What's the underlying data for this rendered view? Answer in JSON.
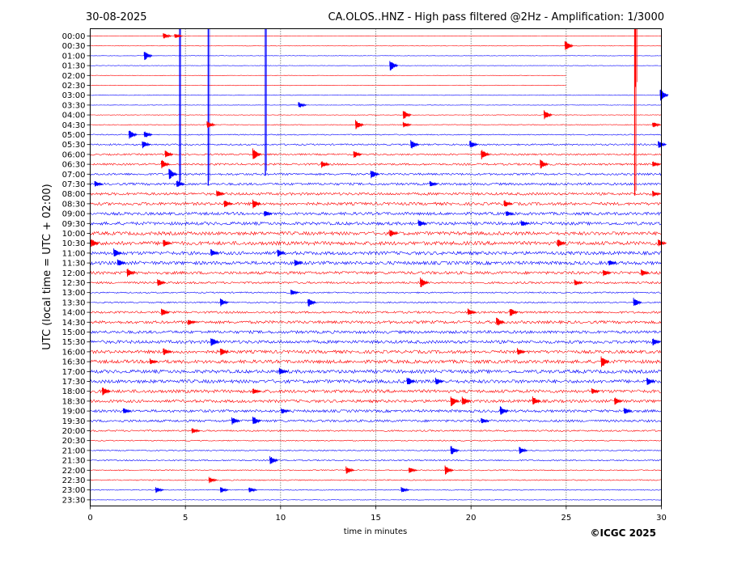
{
  "header": {
    "date": "30-08-2025",
    "title": "CA.OLOS..HNZ - High pass filtered @2Hz - Amplification: 1/3000"
  },
  "footer": {
    "copyright": "©ICGC 2025"
  },
  "colors": {
    "red_trace": "#ff0000",
    "blue_trace": "#0000ff",
    "axis": "#000000"
  },
  "chart_data": {
    "type": "line",
    "subtype": "helicorder (seismogram drum)",
    "xlabel": "time in minutes",
    "ylabel": "UTC (local time = UTC + 02:00)",
    "xlim": [
      0,
      30
    ],
    "xticks": [
      "0",
      "5",
      "10",
      "15",
      "20",
      "25",
      "30"
    ],
    "grid": "vertical dotted lines at 5, 10, 15, 20, 25 minutes",
    "row_color_cycle": [
      "red",
      "red",
      "blue",
      "blue"
    ],
    "rows": [
      "00:00",
      "00:30",
      "01:00",
      "01:30",
      "02:00",
      "02:30",
      "03:00",
      "03:30",
      "04:00",
      "04:30",
      "05:00",
      "05:30",
      "06:00",
      "06:30",
      "07:00",
      "07:30",
      "08:00",
      "08:30",
      "09:00",
      "09:30",
      "10:00",
      "10:30",
      "11:00",
      "11:30",
      "12:00",
      "12:30",
      "13:00",
      "13:30",
      "14:00",
      "14:30",
      "15:00",
      "15:30",
      "16:00",
      "16:30",
      "17:00",
      "17:30",
      "18:00",
      "18:30",
      "19:00",
      "19:30",
      "20:00",
      "20:30",
      "21:00",
      "21:30",
      "22:00",
      "22:30",
      "23:00",
      "23:30"
    ],
    "noise_level_by_row": [
      0.3,
      0.3,
      0.3,
      0.3,
      0.3,
      0.4,
      0.3,
      0.3,
      0.4,
      0.6,
      0.8,
      1.2,
      1.3,
      1.5,
      1.6,
      1.8,
      2.0,
      2.2,
      2.2,
      2.4,
      2.6,
      2.8,
      2.6,
      2.6,
      2.2,
      1.6,
      1.0,
      1.0,
      1.6,
      2.2,
      2.2,
      2.4,
      2.4,
      2.6,
      2.6,
      2.6,
      2.4,
      2.2,
      2.0,
      1.8,
      1.2,
      0.8,
      0.8,
      1.0,
      0.8,
      0.8,
      0.6,
      0.4
    ],
    "row_ends_at_minute": {
      "02:00": 25.0,
      "02:30": 25.0
    },
    "spikes": [
      {
        "row": "00:00",
        "x": 4.7,
        "to_row": "07:30",
        "color": "blue"
      },
      {
        "row": "00:00",
        "x": 6.2,
        "to_row": "07:30",
        "color": "blue"
      },
      {
        "row": "00:00",
        "x": 9.2,
        "to_row": "07:00",
        "color": "blue"
      },
      {
        "row": "00:00",
        "x": 28.6,
        "to_row": "08:00",
        "color": "red"
      },
      {
        "row": "00:00",
        "x": 28.65,
        "to_row": "02:30",
        "color": "red"
      }
    ],
    "events": [
      {
        "row": "00:00",
        "x": 3.9,
        "amp": 4
      },
      {
        "row": "00:00",
        "x": 4.5,
        "amp": 3
      },
      {
        "row": "00:30",
        "x": 25.0,
        "amp": 7
      },
      {
        "row": "01:00",
        "x": 2.9,
        "amp": 6
      },
      {
        "row": "01:30",
        "x": 15.8,
        "amp": 7
      },
      {
        "row": "03:00",
        "x": 30.0,
        "amp": 8
      },
      {
        "row": "03:30",
        "x": 11.0,
        "amp": 4
      },
      {
        "row": "04:00",
        "x": 16.5,
        "amp": 6
      },
      {
        "row": "04:00",
        "x": 23.9,
        "amp": 6
      },
      {
        "row": "04:30",
        "x": 6.2,
        "amp": 5
      },
      {
        "row": "04:30",
        "x": 14.0,
        "amp": 6
      },
      {
        "row": "04:30",
        "x": 16.5,
        "amp": 4
      },
      {
        "row": "04:30",
        "x": 29.6,
        "amp": 4
      },
      {
        "row": "05:00",
        "x": 2.1,
        "amp": 6
      },
      {
        "row": "05:00",
        "x": 2.9,
        "amp": 5
      },
      {
        "row": "05:30",
        "x": 2.8,
        "amp": 5
      },
      {
        "row": "05:30",
        "x": 16.9,
        "amp": 6
      },
      {
        "row": "05:30",
        "x": 20.0,
        "amp": 5
      },
      {
        "row": "05:30",
        "x": 29.9,
        "amp": 5
      },
      {
        "row": "06:00",
        "x": 4.0,
        "amp": 5
      },
      {
        "row": "06:00",
        "x": 8.6,
        "amp": 8
      },
      {
        "row": "06:00",
        "x": 13.9,
        "amp": 5
      },
      {
        "row": "06:00",
        "x": 20.6,
        "amp": 7
      },
      {
        "row": "06:30",
        "x": 3.8,
        "amp": 6
      },
      {
        "row": "06:30",
        "x": 12.2,
        "amp": 5
      },
      {
        "row": "06:30",
        "x": 23.7,
        "amp": 6
      },
      {
        "row": "06:30",
        "x": 29.6,
        "amp": 4
      },
      {
        "row": "07:00",
        "x": 4.2,
        "amp": 7
      },
      {
        "row": "07:00",
        "x": 14.8,
        "amp": 6
      },
      {
        "row": "07:30",
        "x": 0.3,
        "amp": 4
      },
      {
        "row": "07:30",
        "x": 4.6,
        "amp": 5
      },
      {
        "row": "07:30",
        "x": 17.9,
        "amp": 4
      },
      {
        "row": "08:00",
        "x": 6.7,
        "amp": 5
      },
      {
        "row": "08:00",
        "x": 29.6,
        "amp": 4
      },
      {
        "row": "08:30",
        "x": 7.1,
        "amp": 5
      },
      {
        "row": "08:30",
        "x": 8.6,
        "amp": 6
      },
      {
        "row": "08:30",
        "x": 21.8,
        "amp": 5
      },
      {
        "row": "09:00",
        "x": 9.2,
        "amp": 4
      },
      {
        "row": "09:00",
        "x": 21.9,
        "amp": 4
      },
      {
        "row": "09:30",
        "x": 17.3,
        "amp": 5
      },
      {
        "row": "09:30",
        "x": 22.7,
        "amp": 4
      },
      {
        "row": "10:00",
        "x": 15.8,
        "amp": 5
      },
      {
        "row": "10:30",
        "x": 0.1,
        "amp": 6
      },
      {
        "row": "10:30",
        "x": 3.9,
        "amp": 5
      },
      {
        "row": "10:30",
        "x": 24.6,
        "amp": 6
      },
      {
        "row": "10:30",
        "x": 29.9,
        "amp": 5
      },
      {
        "row": "11:00",
        "x": 1.3,
        "amp": 6
      },
      {
        "row": "11:00",
        "x": 6.4,
        "amp": 5
      },
      {
        "row": "11:00",
        "x": 9.9,
        "amp": 5
      },
      {
        "row": "11:30",
        "x": 1.5,
        "amp": 5
      },
      {
        "row": "11:30",
        "x": 10.8,
        "amp": 5
      },
      {
        "row": "11:30",
        "x": 27.3,
        "amp": 4
      },
      {
        "row": "12:00",
        "x": 2.0,
        "amp": 6
      },
      {
        "row": "12:00",
        "x": 27.0,
        "amp": 5
      },
      {
        "row": "12:00",
        "x": 29.0,
        "amp": 5
      },
      {
        "row": "12:30",
        "x": 3.6,
        "amp": 5
      },
      {
        "row": "12:30",
        "x": 17.4,
        "amp": 7
      },
      {
        "row": "12:30",
        "x": 25.5,
        "amp": 4
      },
      {
        "row": "13:00",
        "x": 10.6,
        "amp": 4
      },
      {
        "row": "13:30",
        "x": 6.9,
        "amp": 5
      },
      {
        "row": "13:30",
        "x": 11.5,
        "amp": 6
      },
      {
        "row": "13:30",
        "x": 28.6,
        "amp": 6
      },
      {
        "row": "14:00",
        "x": 3.8,
        "amp": 5
      },
      {
        "row": "14:00",
        "x": 19.9,
        "amp": 5
      },
      {
        "row": "14:00",
        "x": 22.1,
        "amp": 6
      },
      {
        "row": "14:30",
        "x": 5.2,
        "amp": 4
      },
      {
        "row": "14:30",
        "x": 21.4,
        "amp": 6
      },
      {
        "row": "15:30",
        "x": 6.4,
        "amp": 7
      },
      {
        "row": "15:30",
        "x": 29.6,
        "amp": 5
      },
      {
        "row": "16:00",
        "x": 3.9,
        "amp": 5
      },
      {
        "row": "16:00",
        "x": 6.9,
        "amp": 5
      },
      {
        "row": "16:00",
        "x": 22.5,
        "amp": 5
      },
      {
        "row": "16:30",
        "x": 3.2,
        "amp": 4
      },
      {
        "row": "16:30",
        "x": 26.9,
        "amp": 8
      },
      {
        "row": "17:00",
        "x": 10.0,
        "amp": 5
      },
      {
        "row": "17:30",
        "x": 16.7,
        "amp": 6
      },
      {
        "row": "17:30",
        "x": 18.2,
        "amp": 5
      },
      {
        "row": "17:30",
        "x": 29.3,
        "amp": 5
      },
      {
        "row": "18:00",
        "x": 0.7,
        "amp": 6
      },
      {
        "row": "18:00",
        "x": 8.6,
        "amp": 4
      },
      {
        "row": "18:00",
        "x": 26.4,
        "amp": 4
      },
      {
        "row": "18:30",
        "x": 19.0,
        "amp": 7
      },
      {
        "row": "18:30",
        "x": 19.6,
        "amp": 6
      },
      {
        "row": "18:30",
        "x": 23.3,
        "amp": 6
      },
      {
        "row": "18:30",
        "x": 27.6,
        "amp": 5
      },
      {
        "row": "19:00",
        "x": 1.8,
        "amp": 4
      },
      {
        "row": "19:00",
        "x": 10.1,
        "amp": 4
      },
      {
        "row": "19:00",
        "x": 21.6,
        "amp": 6
      },
      {
        "row": "19:00",
        "x": 28.1,
        "amp": 5
      },
      {
        "row": "19:30",
        "x": 7.5,
        "amp": 5
      },
      {
        "row": "19:30",
        "x": 8.6,
        "amp": 6
      },
      {
        "row": "19:30",
        "x": 20.6,
        "amp": 4
      },
      {
        "row": "20:00",
        "x": 5.4,
        "amp": 4
      },
      {
        "row": "21:00",
        "x": 19.0,
        "amp": 6
      },
      {
        "row": "21:00",
        "x": 22.6,
        "amp": 5
      },
      {
        "row": "21:30",
        "x": 9.5,
        "amp": 6
      },
      {
        "row": "22:00",
        "x": 13.5,
        "amp": 5
      },
      {
        "row": "22:00",
        "x": 16.8,
        "amp": 4
      },
      {
        "row": "22:00",
        "x": 18.7,
        "amp": 6
      },
      {
        "row": "22:30",
        "x": 6.3,
        "amp": 4
      },
      {
        "row": "23:00",
        "x": 3.5,
        "amp": 4
      },
      {
        "row": "23:00",
        "x": 6.9,
        "amp": 4
      },
      {
        "row": "23:00",
        "x": 8.4,
        "amp": 4
      },
      {
        "row": "23:00",
        "x": 16.4,
        "amp": 4
      }
    ]
  }
}
